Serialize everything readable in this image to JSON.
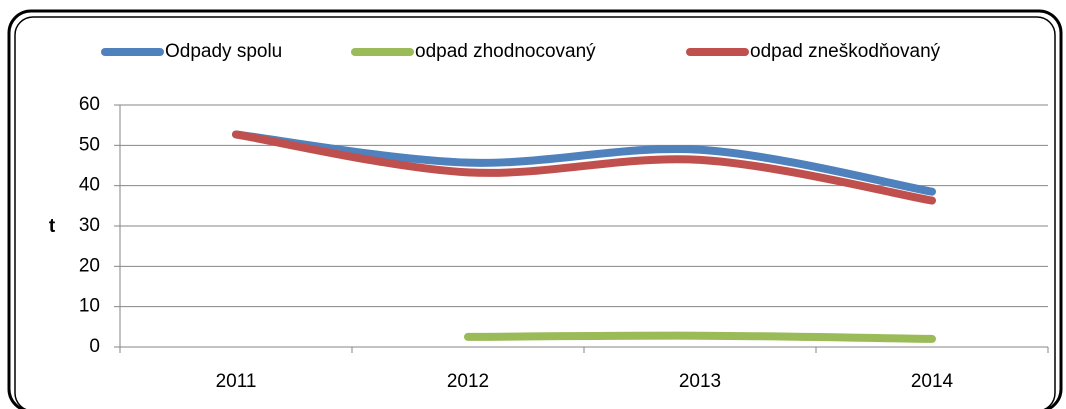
{
  "chart_data": {
    "type": "line",
    "y_label": "t",
    "categories": [
      "2011",
      "2012",
      "2013",
      "2014"
    ],
    "series": [
      {
        "name": "Odpady spolu",
        "color": "#4f81bd",
        "values": [
          52.7,
          45.7,
          48.9,
          38.5
        ]
      },
      {
        "name": "odpad zhodnocovaný",
        "color": "#9bbb59",
        "values": [
          null,
          2.5,
          2.8,
          2.0
        ]
      },
      {
        "name": "odpad zneškodňovaný",
        "color": "#c0504d",
        "values": [
          52.7,
          43.3,
          46.4,
          36.3
        ]
      }
    ],
    "ylim": [
      0,
      60
    ],
    "yticks": [
      0,
      10,
      20,
      30,
      40,
      50,
      60
    ],
    "grid": true,
    "smooth": true,
    "legend": "top"
  }
}
